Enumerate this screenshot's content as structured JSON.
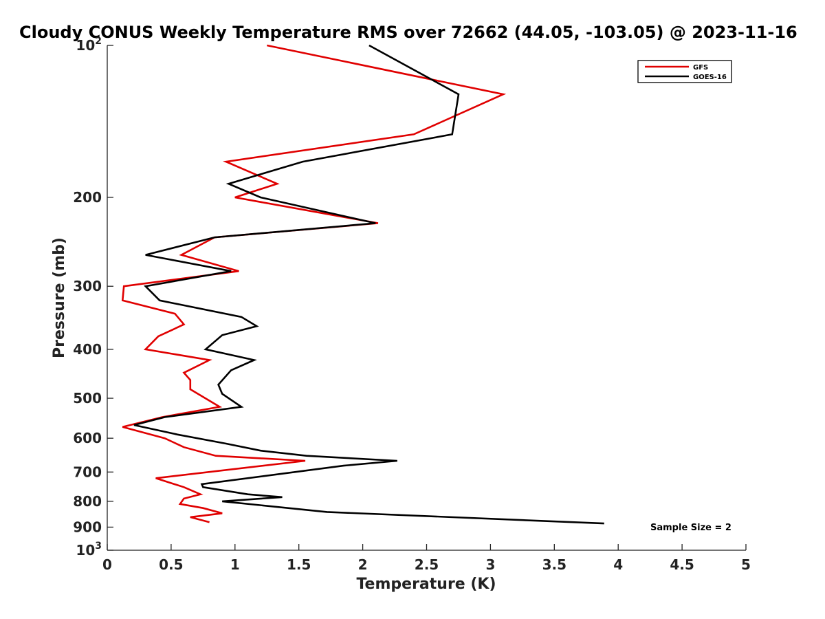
{
  "chart_data": {
    "type": "line",
    "title": "Cloudy CONUS Weekly Temperature RMS over 72662 (44.05, -103.05) @ 2023-11-16",
    "xlabel": "Temperature (K)",
    "ylabel": "Pressure (mb)",
    "xlim": [
      0,
      5
    ],
    "ylim": [
      100,
      1000
    ],
    "yscale": "log",
    "yreversed": true,
    "grid": false,
    "legend_position": "top-right",
    "x_ticks": [
      {
        "value": 0,
        "label": "0"
      },
      {
        "value": 0.5,
        "label": "0.5"
      },
      {
        "value": 1,
        "label": "1"
      },
      {
        "value": 1.5,
        "label": "1.5"
      },
      {
        "value": 2,
        "label": "2"
      },
      {
        "value": 2.5,
        "label": "2.5"
      },
      {
        "value": 3,
        "label": "3"
      },
      {
        "value": 3.5,
        "label": "3.5"
      },
      {
        "value": 4,
        "label": "4"
      },
      {
        "value": 4.5,
        "label": "4.5"
      },
      {
        "value": 5,
        "label": "5"
      }
    ],
    "y_ticks": [
      {
        "value": 100,
        "base": "10",
        "exp": "2"
      },
      {
        "value": 200,
        "label": "200"
      },
      {
        "value": 300,
        "label": "300"
      },
      {
        "value": 400,
        "label": "400"
      },
      {
        "value": 500,
        "label": "500"
      },
      {
        "value": 600,
        "label": "600"
      },
      {
        "value": 700,
        "label": "700"
      },
      {
        "value": 800,
        "label": "800"
      },
      {
        "value": 900,
        "label": "900"
      },
      {
        "value": 1000,
        "base": "10",
        "exp": "3"
      }
    ],
    "series": [
      {
        "name": "GFS",
        "color": "#e00000",
        "points": [
          [
            1.25,
            100
          ],
          [
            3.1,
            125
          ],
          [
            2.4,
            150
          ],
          [
            0.93,
            170
          ],
          [
            1.33,
            188
          ],
          [
            1.0,
            200
          ],
          [
            2.12,
            225
          ],
          [
            0.84,
            240
          ],
          [
            0.58,
            260
          ],
          [
            1.03,
            280
          ],
          [
            0.13,
            300
          ],
          [
            0.12,
            320
          ],
          [
            0.53,
            340
          ],
          [
            0.6,
            357
          ],
          [
            0.4,
            377
          ],
          [
            0.3,
            400
          ],
          [
            0.8,
            420
          ],
          [
            0.6,
            445
          ],
          [
            0.65,
            460
          ],
          [
            0.65,
            480
          ],
          [
            0.88,
            520
          ],
          [
            0.43,
            545
          ],
          [
            0.12,
            570
          ],
          [
            0.45,
            600
          ],
          [
            0.6,
            625
          ],
          [
            0.85,
            650
          ],
          [
            1.55,
            665
          ],
          [
            0.38,
            720
          ],
          [
            0.6,
            750
          ],
          [
            0.73,
            775
          ],
          [
            0.6,
            790
          ],
          [
            0.57,
            810
          ],
          [
            0.75,
            825
          ],
          [
            0.9,
            845
          ],
          [
            0.65,
            860
          ],
          [
            0.8,
            880
          ]
        ]
      },
      {
        "name": "GOES-16",
        "color": "#000000",
        "points": [
          [
            2.05,
            100
          ],
          [
            2.75,
            125
          ],
          [
            2.7,
            150
          ],
          [
            1.53,
            170
          ],
          [
            0.95,
            188
          ],
          [
            1.2,
            200
          ],
          [
            2.1,
            225
          ],
          [
            0.84,
            240
          ],
          [
            0.3,
            260
          ],
          [
            0.97,
            280
          ],
          [
            0.3,
            300
          ],
          [
            0.41,
            320
          ],
          [
            1.05,
            345
          ],
          [
            1.17,
            360
          ],
          [
            0.9,
            375
          ],
          [
            0.77,
            400
          ],
          [
            1.15,
            420
          ],
          [
            0.97,
            440
          ],
          [
            0.87,
            470
          ],
          [
            0.9,
            490
          ],
          [
            1.05,
            520
          ],
          [
            0.45,
            545
          ],
          [
            0.21,
            565
          ],
          [
            0.55,
            590
          ],
          [
            0.93,
            615
          ],
          [
            1.2,
            635
          ],
          [
            1.56,
            650
          ],
          [
            2.27,
            665
          ],
          [
            1.85,
            680
          ],
          [
            0.74,
            740
          ],
          [
            0.75,
            750
          ],
          [
            1.1,
            775
          ],
          [
            1.37,
            785
          ],
          [
            0.9,
            800
          ],
          [
            1.72,
            840
          ],
          [
            3.89,
            885
          ]
        ]
      }
    ],
    "annotations": [
      {
        "text": "Sample Size = 2",
        "x": 4.45,
        "y": 900
      }
    ]
  }
}
